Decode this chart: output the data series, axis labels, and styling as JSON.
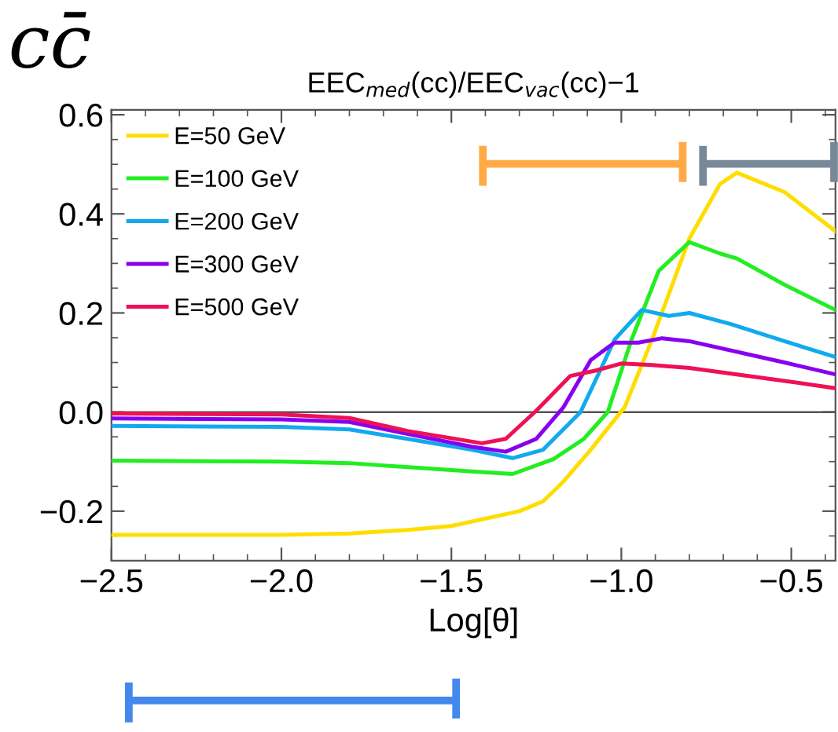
{
  "chart_data": {
    "type": "line",
    "title": "EEC$_{med}$(cc)/EEC$_{vac}$(cc)−1",
    "xlabel": "Log[θ]",
    "annotations": [
      "cc̄"
    ],
    "xlim": [
      -2.5,
      -0.37
    ],
    "xticks": [
      {
        "value": -2.5,
        "label": "−2.5"
      },
      {
        "value": -2.0,
        "label": "−2.0"
      },
      {
        "value": -1.5,
        "label": "−1.5"
      },
      {
        "value": -1.0,
        "label": "−1.0"
      },
      {
        "value": -0.5,
        "label": "−0.5"
      }
    ],
    "ylim": [
      -0.3,
      0.61
    ],
    "yticks": [
      {
        "value": -0.2,
        "label": "−0.2"
      },
      {
        "value": 0.0,
        "label": "0.0"
      },
      {
        "value": 0.2,
        "label": "0.2"
      },
      {
        "value": 0.4,
        "label": "0.4"
      },
      {
        "value": 0.6,
        "label": "0.6"
      }
    ],
    "legend": "top left",
    "grid": false,
    "ref_lines": [
      {
        "axis": "y",
        "value": 0,
        "color": "#555555"
      }
    ],
    "series": [
      {
        "name": "E=50 GeV",
        "color": "#ffdd00",
        "x": [
          -2.5,
          -2.0,
          -1.8,
          -1.63,
          -1.5,
          -1.3,
          -1.23,
          -1.17,
          -1.09,
          -0.99,
          -0.91,
          -0.8,
          -0.71,
          -0.66,
          -0.52,
          -0.37
        ],
        "values": [
          -0.248,
          -0.248,
          -0.245,
          -0.238,
          -0.23,
          -0.2,
          -0.18,
          -0.14,
          -0.076,
          0.01,
          0.146,
          0.35,
          0.46,
          0.483,
          0.444,
          0.365
        ]
      },
      {
        "name": "E=100 GeV",
        "color": "#22ee22",
        "x": [
          -2.5,
          -2.0,
          -1.8,
          -1.44,
          -1.32,
          -1.2,
          -1.11,
          -1.04,
          -0.97,
          -0.89,
          -0.8,
          -0.71,
          -0.66,
          -0.52,
          -0.37
        ],
        "values": [
          -0.098,
          -0.1,
          -0.103,
          -0.12,
          -0.125,
          -0.095,
          -0.054,
          0.0,
          0.146,
          0.285,
          0.343,
          0.32,
          0.31,
          0.257,
          0.206
        ]
      },
      {
        "name": "E=200 GeV",
        "color": "#11aaee",
        "x": [
          -2.5,
          -2.0,
          -1.8,
          -1.63,
          -1.44,
          -1.32,
          -1.23,
          -1.12,
          -1.02,
          -0.94,
          -0.86,
          -0.8,
          -0.68,
          -0.52,
          -0.37
        ],
        "values": [
          -0.028,
          -0.03,
          -0.035,
          -0.054,
          -0.076,
          -0.093,
          -0.076,
          0.0,
          0.146,
          0.206,
          0.194,
          0.2,
          0.178,
          0.143,
          0.111
        ]
      },
      {
        "name": "E=300 GeV",
        "color": "#8800ee",
        "x": [
          -2.5,
          -2.0,
          -1.8,
          -1.63,
          -1.44,
          -1.34,
          -1.25,
          -1.17,
          -1.09,
          -1.02,
          -0.95,
          -0.88,
          -0.8,
          -0.52,
          -0.37
        ],
        "values": [
          -0.013,
          -0.015,
          -0.02,
          -0.044,
          -0.07,
          -0.08,
          -0.054,
          0.01,
          0.105,
          0.14,
          0.14,
          0.149,
          0.143,
          0.1,
          0.076
        ]
      },
      {
        "name": "E=500 GeV",
        "color": "#ee1155",
        "x": [
          -2.5,
          -2.0,
          -1.8,
          -1.63,
          -1.41,
          -1.34,
          -1.25,
          -1.15,
          -1.08,
          -1.0,
          -0.91,
          -0.8,
          -0.52,
          -0.37
        ],
        "values": [
          -0.003,
          -0.005,
          -0.012,
          -0.038,
          -0.063,
          -0.054,
          0.003,
          0.073,
          0.083,
          0.098,
          0.095,
          0.089,
          0.063,
          0.048
        ]
      }
    ]
  }
}
